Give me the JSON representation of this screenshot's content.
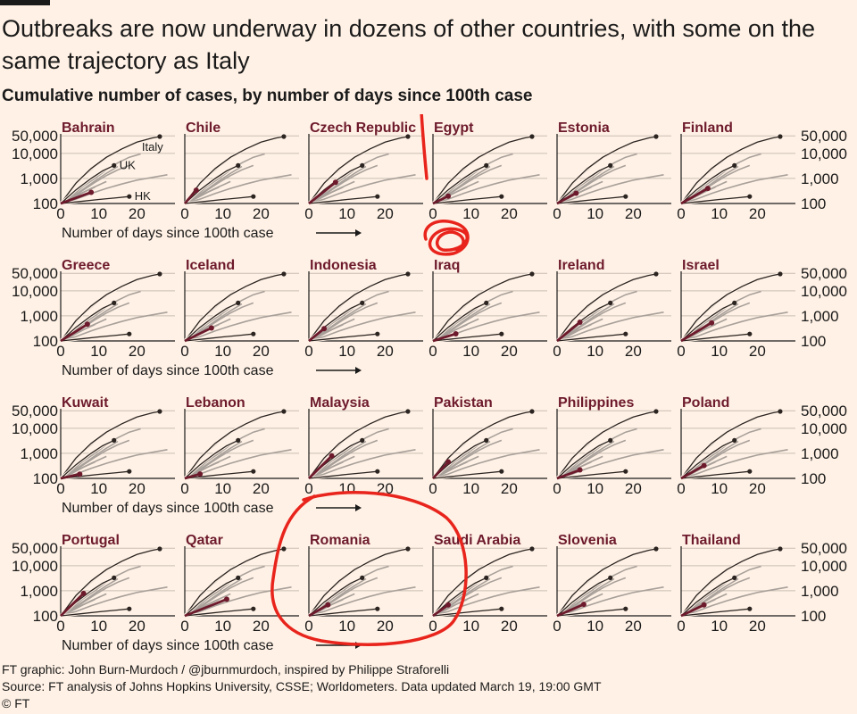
{
  "title": "Outbreaks are now underway in dozens of other countries, with some on the same trajectory as Italy",
  "subtitle": "Cumulative number of cases, by number of days since 100th case",
  "x_axis_label": "Number of days since 100th case",
  "footer": {
    "credit": "FT graphic: John Burn-Murdoch / @jburnmurdoch, inspired by Philippe Straforelli",
    "source": "Source: FT analysis of Johns Hopkins University, CSSE; Worldometers. Data updated March 19, 19:00 GMT",
    "copyright": "© FT"
  },
  "colors": {
    "background": "#fff1e5",
    "highlight": "#6d1a2c",
    "context_line": "#a8a09a",
    "reference_line": "#2b2421",
    "gridline": "#c9beb4",
    "annotation": "#e8241c"
  },
  "chart_data": {
    "type": "line",
    "layout": "small-multiples",
    "x_ticks": [
      0,
      10,
      20
    ],
    "y_ticks": [
      100,
      1000,
      10000,
      50000
    ],
    "y_tick_labels": [
      "100",
      "1,000",
      "10,000",
      "50,000"
    ],
    "y_scale": "log",
    "xlim": [
      0,
      30
    ],
    "ylim": [
      100,
      60000
    ],
    "grid": true,
    "reference_series": [
      {
        "name": "Italy",
        "x": [
          0,
          4,
          8,
          12,
          16,
          20,
          24,
          26
        ],
        "y": [
          100,
          650,
          2500,
          7000,
          15000,
          28000,
          41000,
          47000
        ]
      },
      {
        "name": "UK",
        "x": [
          0,
          4,
          8,
          11,
          14
        ],
        "y": [
          100,
          350,
          1000,
          2000,
          3300
        ]
      },
      {
        "name": "HK",
        "x": [
          0,
          5,
          10,
          15,
          18
        ],
        "y": [
          100,
          120,
          145,
          170,
          190
        ]
      }
    ],
    "context_series": [
      {
        "x": [
          0,
          3,
          6,
          9,
          12,
          15,
          18,
          21,
          24
        ],
        "y": [
          100,
          400,
          1200,
          3000,
          6500,
          12000,
          20000,
          30000,
          42000
        ]
      },
      {
        "x": [
          0,
          3,
          6,
          9,
          12,
          15,
          18,
          21
        ],
        "y": [
          100,
          200,
          500,
          1000,
          2200,
          4200,
          7000,
          9500
        ]
      },
      {
        "x": [
          0,
          3,
          6,
          9,
          12,
          15,
          18
        ],
        "y": [
          100,
          170,
          350,
          700,
          1300,
          2200,
          3300
        ]
      },
      {
        "x": [
          0,
          4,
          8,
          12,
          16,
          20,
          24,
          28
        ],
        "y": [
          100,
          150,
          250,
          400,
          600,
          850,
          1100,
          1400
        ]
      },
      {
        "x": [
          0,
          3,
          6,
          9,
          12,
          15
        ],
        "y": [
          100,
          180,
          380,
          800,
          1600,
          3000
        ]
      },
      {
        "x": [
          0,
          4,
          8,
          12
        ],
        "y": [
          100,
          200,
          400,
          750
        ]
      },
      {
        "x": [
          0,
          3,
          6,
          9
        ],
        "y": [
          100,
          160,
          280,
          450
        ]
      }
    ],
    "countries": [
      {
        "name": "Bahrain",
        "days": 8,
        "cases": 280
      },
      {
        "name": "Chile",
        "days": 3,
        "cases": 340
      },
      {
        "name": "Czech Republic",
        "days": 7,
        "cases": 700
      },
      {
        "name": "Egypt",
        "days": 4,
        "cases": 196
      },
      {
        "name": "Estonia",
        "days": 5,
        "cases": 258
      },
      {
        "name": "Finland",
        "days": 7,
        "cases": 400
      },
      {
        "name": "Greece",
        "days": 7,
        "cases": 464
      },
      {
        "name": "Iceland",
        "days": 7,
        "cases": 330
      },
      {
        "name": "Indonesia",
        "days": 4,
        "cases": 309
      },
      {
        "name": "Iraq",
        "days": 6,
        "cases": 192
      },
      {
        "name": "Ireland",
        "days": 6,
        "cases": 557
      },
      {
        "name": "Israel",
        "days": 8,
        "cases": 529
      },
      {
        "name": "Kuwait",
        "days": 5,
        "cases": 148
      },
      {
        "name": "Lebanon",
        "days": 4,
        "cases": 149
      },
      {
        "name": "Malaysia",
        "days": 6,
        "cases": 790
      },
      {
        "name": "Pakistan",
        "days": 4,
        "cases": 454
      },
      {
        "name": "Philippines",
        "days": 6,
        "cases": 217
      },
      {
        "name": "Poland",
        "days": 6,
        "cases": 325
      },
      {
        "name": "Portugal",
        "days": 6,
        "cases": 785
      },
      {
        "name": "Qatar",
        "days": 11,
        "cases": 460
      },
      {
        "name": "Romania",
        "days": 5,
        "cases": 277
      },
      {
        "name": "Saudi Arabia",
        "days": 4,
        "cases": 274
      },
      {
        "name": "Slovenia",
        "days": 7,
        "cases": 286
      },
      {
        "name": "Thailand",
        "days": 6,
        "cases": 272
      }
    ]
  }
}
